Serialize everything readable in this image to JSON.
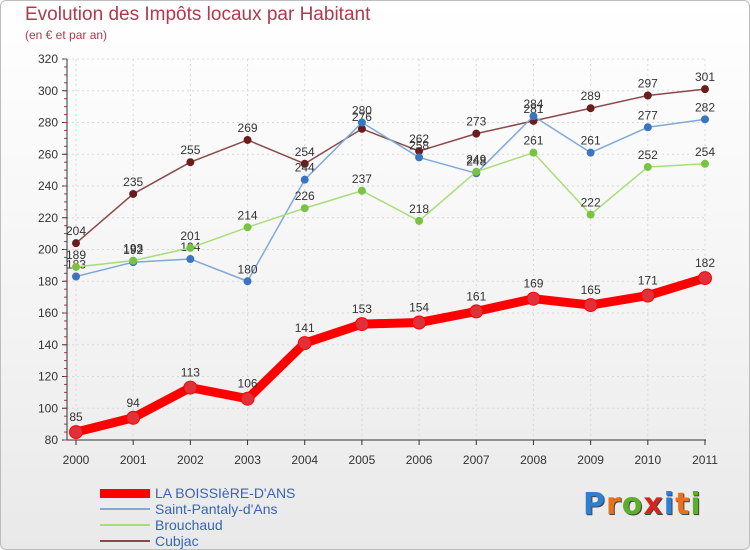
{
  "header": {
    "title": "Evolution des Impôts locaux par Habitant",
    "subtitle": "(en € et par an)"
  },
  "logo": {
    "text": "Proxiti",
    "letters": [
      "P",
      "r",
      "o",
      "x",
      "i",
      "t",
      "i"
    ],
    "colors": [
      "#2f7fd0",
      "#e8711a",
      "#5fae2b",
      "#d6251d",
      "#2f7fd0",
      "#e8711a",
      "#5fae2b"
    ]
  },
  "chart_data": {
    "type": "line",
    "title": "Evolution des Impôts locaux par Habitant",
    "subtitle": "(en € et par an)",
    "categories": [
      "2000",
      "2001",
      "2002",
      "2003",
      "2004",
      "2005",
      "2006",
      "2007",
      "2008",
      "2009",
      "2010",
      "2011"
    ],
    "ylim": [
      80,
      320
    ],
    "yticks": [
      80,
      100,
      120,
      140,
      160,
      180,
      200,
      220,
      240,
      260,
      280,
      300,
      320
    ],
    "grid": true,
    "legend_position": "bottom-left",
    "series": [
      {
        "name": "LA BOISSIèRE-D'ANS",
        "color": "#ff0000",
        "marker": "#e0303a",
        "width": 9,
        "values": [
          85,
          94,
          113,
          106,
          141,
          153,
          154,
          161,
          169,
          165,
          171,
          182
        ]
      },
      {
        "name": "Saint-Pantaly-d'Ans",
        "color": "#7ea9d8",
        "marker": "#3a76c0",
        "width": 1.5,
        "values": [
          183,
          192,
          194,
          180,
          244,
          280,
          258,
          248,
          284,
          261,
          277,
          282
        ]
      },
      {
        "name": "Brouchaud",
        "color": "#a8dd78",
        "marker": "#78c442",
        "width": 1.5,
        "values": [
          189,
          193,
          201,
          214,
          226,
          237,
          218,
          249,
          261,
          222,
          252,
          254
        ]
      },
      {
        "name": "Cubjac",
        "color": "#8a4a4a",
        "marker": "#6b1d1d",
        "width": 1.5,
        "values": [
          204,
          235,
          255,
          269,
          254,
          276,
          262,
          273,
          281,
          289,
          297,
          301
        ]
      }
    ]
  }
}
